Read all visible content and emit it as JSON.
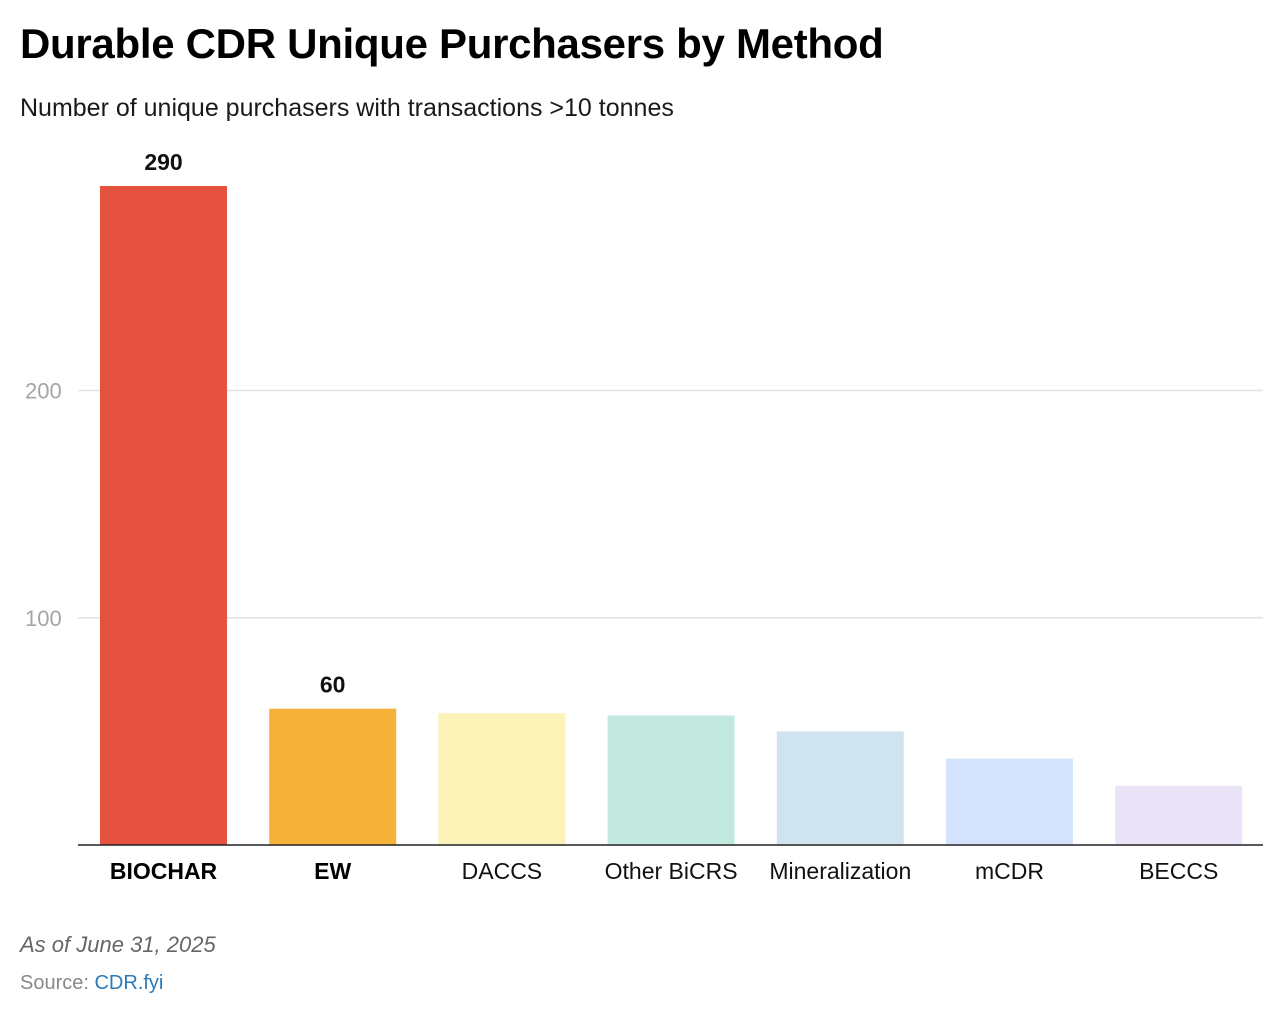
{
  "chart_data": {
    "type": "bar",
    "title": "Durable CDR Unique Purchasers by Method",
    "subtitle": "Number of unique purchasers with transactions >10 tonnes",
    "categories": [
      "BIOCHAR",
      "EW",
      "DACCS",
      "Other BiCRS",
      "Mineralization",
      "mCDR",
      "BECCS"
    ],
    "values": [
      290,
      60,
      58,
      57,
      50,
      38,
      26
    ],
    "colors": [
      "#e55240",
      "#f6b13b",
      "#fbf2b8",
      "#c3e8df",
      "#cfe4ef",
      "#d4e3fb",
      "#ebe3f8"
    ],
    "bold_categories": [
      "BIOCHAR",
      "EW"
    ],
    "data_labels": [
      {
        "category": "BIOCHAR",
        "text": "290"
      },
      {
        "category": "EW",
        "text": "60"
      }
    ],
    "y_ticks": [
      100,
      200
    ],
    "ylim": [
      0,
      290
    ],
    "grid": true,
    "xlabel": "",
    "ylabel": ""
  },
  "footer": {
    "note": "As of June 31, 2025",
    "source_prefix": "Source: ",
    "source_link": "CDR.fyi"
  }
}
